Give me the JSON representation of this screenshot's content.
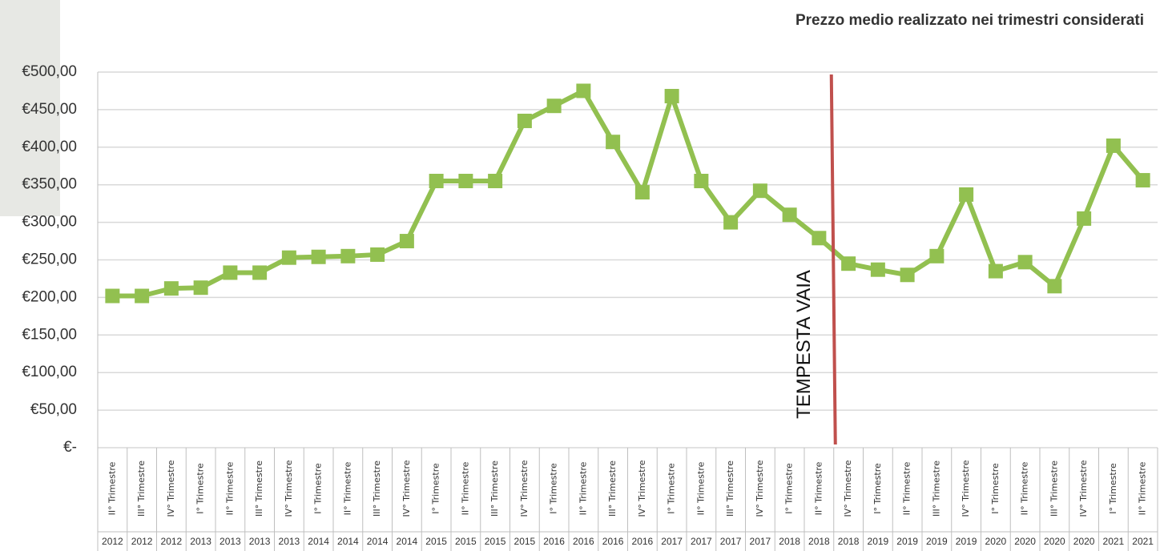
{
  "chart_data": {
    "type": "line",
    "title": "Prezzo medio realizzato nei trimestri considerati",
    "categories": [
      "II° Trimestre",
      "III° Trimestre",
      "IV° Trimestre",
      "I° Trimestre",
      "II° Trimestre",
      "III° Trimestre",
      "IV° Trimestre",
      "I° Trimestre",
      "II° Trimestre",
      "III° Trimestre",
      "IV° Trimestre",
      "I° Trimestre",
      "II° Trimestre",
      "III° Trimestre",
      "IV° Trimestre",
      "I° Trimestre",
      "II° Trimestre",
      "III° Trimestre",
      "IV° Trimestre",
      "I° Trimestre",
      "II° Trimestre",
      "III° Trimestre",
      "IV° Trimestre",
      "I° Trimestre",
      "II° Trimestre",
      "IV° Trimestre",
      "I° Trimestre",
      "II° Trimestre",
      "III° Trimestre",
      "IV° Trimestre",
      "I° Trimestre",
      "II° Trimestre",
      "III° Trimestre",
      "IV° Trimestre",
      "I° Trimestre",
      "II° Trimestre"
    ],
    "category_years": [
      "2012",
      "2012",
      "2012",
      "2013",
      "2013",
      "2013",
      "2013",
      "2014",
      "2014",
      "2014",
      "2014",
      "2015",
      "2015",
      "2015",
      "2015",
      "2016",
      "2016",
      "2016",
      "2016",
      "2017",
      "2017",
      "2017",
      "2017",
      "2018",
      "2018",
      "2018",
      "2019",
      "2019",
      "2019",
      "2019",
      "2020",
      "2020",
      "2020",
      "2020",
      "2021",
      "2021"
    ],
    "values": [
      202,
      202,
      212,
      213,
      233,
      233,
      253,
      254,
      255,
      257,
      275,
      355,
      355,
      355,
      435,
      455,
      475,
      407,
      340,
      468,
      355,
      300,
      342,
      310,
      279,
      245,
      237,
      230,
      255,
      337,
      235,
      247,
      215,
      305,
      402,
      356
    ],
    "color": "#92c050",
    "ylim": [
      0,
      500
    ],
    "yticks": [
      {
        "value": 0,
        "label": "€-"
      },
      {
        "value": 50,
        "label": "€50,00"
      },
      {
        "value": 100,
        "label": "€100,00"
      },
      {
        "value": 150,
        "label": "€150,00"
      },
      {
        "value": 200,
        "label": "€200,00"
      },
      {
        "value": 250,
        "label": "€250,00"
      },
      {
        "value": 300,
        "label": "€300,00"
      },
      {
        "value": 350,
        "label": "€350,00"
      },
      {
        "value": 400,
        "label": "€400,00"
      },
      {
        "value": 450,
        "label": "€450,00"
      },
      {
        "value": 500,
        "label": "€500,00"
      }
    ],
    "grid": true,
    "annotation": "TEMPESTA VAIA",
    "annotation_color": "#c0504d"
  }
}
